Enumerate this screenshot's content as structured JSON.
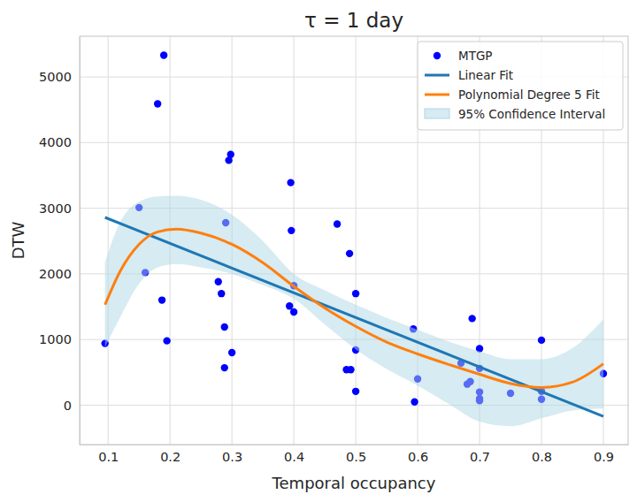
{
  "chart_data": {
    "type": "scatter",
    "title": "τ = 1 day",
    "x_label": "Temporal occupancy",
    "y_label": "DTW",
    "xlim": [
      0.054,
      0.94
    ],
    "ylim": [
      -600,
      5620
    ],
    "xticks": [
      0.1,
      0.2,
      0.3,
      0.4,
      0.5,
      0.6,
      0.7,
      0.8,
      0.9
    ],
    "yticks": [
      0,
      1000,
      2000,
      3000,
      4000,
      5000
    ],
    "grid": true,
    "legend": "upper right",
    "series": [
      {
        "name": "MTGP",
        "type": "scatter",
        "color": "#0000ff",
        "marker": "circle",
        "x": [
          0.095,
          0.15,
          0.16,
          0.18,
          0.19,
          0.187,
          0.195,
          0.29,
          0.278,
          0.283,
          0.288,
          0.288,
          0.295,
          0.298,
          0.3,
          0.395,
          0.396,
          0.393,
          0.4,
          0.4,
          0.47,
          0.49,
          0.485,
          0.492,
          0.5,
          0.5,
          0.5,
          0.593,
          0.6,
          0.595,
          0.67,
          0.68,
          0.685,
          0.688,
          0.7,
          0.7,
          0.7,
          0.7,
          0.7,
          0.75,
          0.8,
          0.8,
          0.8,
          0.9
        ],
        "values": [
          940,
          3010,
          2020,
          4590,
          5330,
          1600,
          980,
          2780,
          1880,
          1700,
          1190,
          570,
          3730,
          3820,
          800,
          3390,
          2660,
          1510,
          1820,
          1420,
          2760,
          2310,
          540,
          540,
          1700,
          840,
          210,
          1160,
          400,
          50,
          640,
          320,
          360,
          1320,
          860,
          560,
          200,
          100,
          70,
          180,
          990,
          210,
          90,
          480
        ]
      },
      {
        "name": "Linear Fit",
        "type": "line",
        "color": "#1f77b4",
        "line_style": "solid",
        "x": [
          0.095,
          0.9
        ],
        "values": [
          2860,
          -170
        ]
      },
      {
        "name": "Polynomial Degree 5 Fit",
        "type": "line",
        "color": "#ff7f0e",
        "line_style": "solid",
        "x": [
          0.095,
          0.12,
          0.15,
          0.18,
          0.21,
          0.25,
          0.3,
          0.35,
          0.4,
          0.45,
          0.5,
          0.55,
          0.6,
          0.65,
          0.7,
          0.75,
          0.8,
          0.85,
          0.9
        ],
        "values": [
          1530,
          2050,
          2450,
          2640,
          2680,
          2620,
          2450,
          2170,
          1810,
          1480,
          1200,
          960,
          780,
          620,
          470,
          330,
          270,
          350,
          630
        ]
      },
      {
        "name": "95% Confidence Interval",
        "type": "area",
        "color": "#add8e6",
        "x": [
          0.095,
          0.12,
          0.15,
          0.18,
          0.21,
          0.25,
          0.3,
          0.35,
          0.4,
          0.45,
          0.5,
          0.55,
          0.6,
          0.65,
          0.7,
          0.75,
          0.8,
          0.85,
          0.9
        ],
        "lower": [
          880,
          1350,
          1850,
          2100,
          2150,
          2100,
          2000,
          1830,
          1620,
          1230,
          850,
          550,
          300,
          20,
          -250,
          -320,
          -200,
          -80,
          -50
        ],
        "upper": [
          2180,
          2800,
          3100,
          3180,
          3190,
          3130,
          2900,
          2500,
          2000,
          1750,
          1530,
          1330,
          1150,
          970,
          820,
          700,
          700,
          870,
          1310
        ]
      }
    ]
  }
}
